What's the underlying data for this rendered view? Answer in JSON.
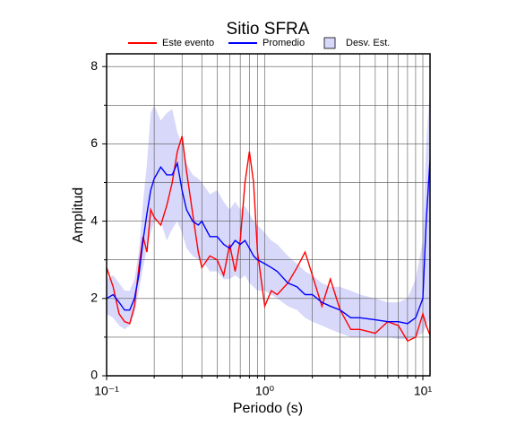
{
  "chart_data": {
    "type": "line",
    "title": "Sitio SFRA",
    "xlabel": "Periodo (s)",
    "ylabel": "Amplitud",
    "xscale": "log",
    "grid": true,
    "xlim": [
      0.1,
      11.1
    ],
    "ylim": [
      0,
      8.33
    ],
    "xticks": [
      {
        "value": 0.1,
        "label": "10⁻¹"
      },
      {
        "value": 1,
        "label": "10⁰"
      },
      {
        "value": 10,
        "label": "10¹"
      }
    ],
    "xminor": [
      0.2,
      0.3,
      0.4,
      0.5,
      0.6,
      0.7,
      0.8,
      0.9,
      2,
      3,
      4,
      5,
      6,
      7,
      8,
      9
    ],
    "yticks": [
      0,
      2,
      4,
      6,
      8
    ],
    "yminor": [
      1,
      3,
      5,
      7
    ],
    "x": [
      0.1,
      0.11,
      0.12,
      0.13,
      0.14,
      0.15,
      0.16,
      0.17,
      0.18,
      0.19,
      0.2,
      0.22,
      0.24,
      0.26,
      0.28,
      0.3,
      0.32,
      0.35,
      0.38,
      0.4,
      0.45,
      0.5,
      0.55,
      0.6,
      0.65,
      0.7,
      0.75,
      0.8,
      0.85,
      0.9,
      1.0,
      1.1,
      1.2,
      1.4,
      1.6,
      1.8,
      2.0,
      2.3,
      2.6,
      3.0,
      3.5,
      4,
      5,
      6,
      7,
      8,
      9,
      10,
      10.5,
      11.1
    ],
    "series": [
      {
        "name": "Este evento",
        "color": "#ff0000",
        "values": [
          2.8,
          2.3,
          1.6,
          1.4,
          1.35,
          1.8,
          2.8,
          3.6,
          3.2,
          4.3,
          4.1,
          3.9,
          4.4,
          5.0,
          5.8,
          6.2,
          5.3,
          4.2,
          3.2,
          2.8,
          3.1,
          3.0,
          2.6,
          3.4,
          2.7,
          3.5,
          5.0,
          5.8,
          5.0,
          3.2,
          1.8,
          2.2,
          2.1,
          2.4,
          2.8,
          3.2,
          2.6,
          1.8,
          2.5,
          1.7,
          1.2,
          1.2,
          1.1,
          1.4,
          1.3,
          0.9,
          1.0,
          1.6,
          1.3,
          1.05
        ]
      },
      {
        "name": "Promedio",
        "color": "#0000ff",
        "values": [
          2.0,
          2.1,
          1.9,
          1.7,
          1.7,
          2.0,
          2.6,
          3.5,
          4.2,
          4.8,
          5.1,
          5.4,
          5.2,
          5.2,
          5.5,
          4.8,
          4.3,
          4.0,
          3.9,
          4.0,
          3.6,
          3.6,
          3.4,
          3.3,
          3.5,
          3.4,
          3.5,
          3.3,
          3.1,
          3.0,
          2.9,
          2.8,
          2.7,
          2.4,
          2.3,
          2.1,
          2.1,
          1.9,
          1.8,
          1.7,
          1.5,
          1.5,
          1.45,
          1.4,
          1.4,
          1.35,
          1.5,
          2.0,
          4.0,
          5.6
        ]
      },
      {
        "name": "Desv. Est.",
        "color": "#d8d8fa",
        "lower": [
          1.6,
          1.5,
          1.3,
          1.2,
          1.3,
          1.6,
          2.2,
          2.8,
          3.3,
          3.7,
          4.0,
          4.0,
          3.5,
          3.8,
          4.0,
          3.7,
          3.3,
          3.1,
          3.0,
          3.0,
          2.7,
          2.7,
          2.5,
          2.5,
          2.6,
          2.5,
          2.6,
          2.4,
          2.3,
          2.2,
          2.2,
          2.1,
          2.0,
          1.8,
          1.7,
          1.5,
          1.4,
          1.3,
          1.2,
          1.1,
          1.0,
          1.0,
          1.0,
          1.0,
          0.95,
          0.95,
          1.0,
          1.1,
          1.3,
          1.5
        ],
        "upper": [
          2.5,
          2.6,
          2.4,
          2.2,
          2.2,
          2.5,
          3.2,
          4.5,
          5.5,
          6.8,
          7.0,
          6.6,
          6.8,
          6.9,
          6.3,
          6.0,
          5.5,
          5.2,
          5.1,
          5.0,
          4.7,
          4.8,
          4.5,
          4.3,
          4.5,
          4.3,
          4.4,
          4.2,
          4.0,
          3.9,
          3.7,
          3.5,
          3.4,
          3.1,
          2.9,
          2.7,
          2.6,
          2.4,
          2.3,
          2.3,
          2.2,
          2.1,
          2.0,
          1.9,
          1.9,
          2.0,
          2.5,
          3.5,
          6.0,
          7.5
        ]
      }
    ]
  }
}
